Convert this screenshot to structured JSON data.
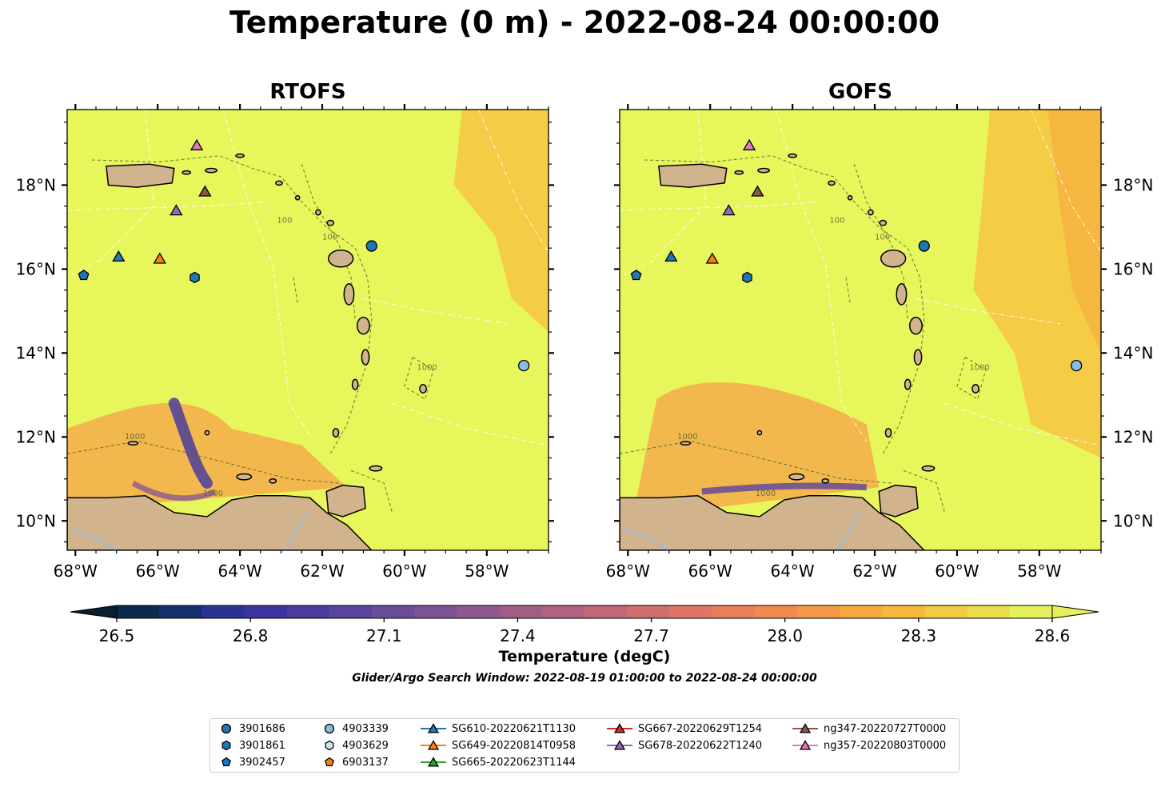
{
  "title": "Temperature (0 m) - 2022-08-24 00:00:00",
  "subtitle": "Glider/Argo Search Window: 2022-08-19 01:00:00 to 2022-08-24 00:00:00",
  "map": {
    "lon_range": [
      -68.2,
      -56.5
    ],
    "lat_range": [
      9.3,
      19.8
    ],
    "lon_ticks": [
      -68,
      -66,
      -64,
      -62,
      -60,
      -58
    ],
    "lat_ticks": [
      10,
      12,
      14,
      16,
      18
    ],
    "lon_tick_labels": [
      "68°W",
      "66°W",
      "64°W",
      "62°W",
      "60°W",
      "58°W"
    ],
    "lat_tick_labels": [
      "10°N",
      "12°N",
      "14°N",
      "16°N",
      "18°N"
    ],
    "isobath_label": "1000",
    "isobath_label_alt": "100"
  },
  "panels": [
    {
      "name": "RTOFS"
    },
    {
      "name": "GOFS"
    }
  ],
  "colorbar": {
    "label": "Temperature (degC)",
    "vmin": 26.5,
    "vmax": 28.6,
    "ticks": [
      "26.5",
      "26.8",
      "27.1",
      "27.4",
      "27.7",
      "28.0",
      "28.3",
      "28.6"
    ],
    "colors": [
      "#06202f",
      "#0b2a4f",
      "#16306e",
      "#2a3393",
      "#3c35a0",
      "#4b3c9e",
      "#5b449b",
      "#6b4c98",
      "#7c5393",
      "#8e598e",
      "#a05e87",
      "#b06380",
      "#c06778",
      "#d06d6e",
      "#de7565",
      "#ea7e5b",
      "#f28a50",
      "#f59846",
      "#f7a83e",
      "#f6b93c",
      "#f2cc40",
      "#ebdd49",
      "#e6f05a"
    ]
  },
  "colors": {
    "land": "#d1b38d",
    "ocean_warm": "#e7f75b",
    "ocean_orange": "#f7c443",
    "river": "#9cbdd9"
  },
  "markers": [
    {
      "id": "3901686",
      "shape": "circle",
      "color": "#1f77b4",
      "lon": -60.8,
      "lat": 16.55
    },
    {
      "id": "3901861",
      "shape": "hexagon",
      "color": "#1f77b4",
      "lon": -65.1,
      "lat": 15.8
    },
    {
      "id": "3902457",
      "shape": "pentagon",
      "color": "#1f77b4",
      "lon": -67.8,
      "lat": 15.85
    },
    {
      "id": "4903339",
      "shape": "circle",
      "color": "#86bde0",
      "lon": -57.1,
      "lat": 13.7
    },
    {
      "id": "4903629",
      "shape": "hexagon",
      "color": "#c9e6f7",
      "lon": null,
      "lat": null
    },
    {
      "id": "6903137",
      "shape": "pentagon",
      "color": "#ff7f0e",
      "lon": null,
      "lat": null
    },
    {
      "id": "SG610-20220621T1130",
      "shape": "triangle",
      "color": "#1f77b4",
      "lon": -66.95,
      "lat": 16.3
    },
    {
      "id": "SG649-20220814T0958",
      "shape": "triangle",
      "color": "#ff7f0e",
      "lon": -65.95,
      "lat": 16.25
    },
    {
      "id": "SG665-20220623T1144",
      "shape": "triangle",
      "color": "#2ca02c",
      "lon": null,
      "lat": null
    },
    {
      "id": "SG667-20220629T1254",
      "shape": "triangle",
      "color": "#d62728",
      "lon": null,
      "lat": null
    },
    {
      "id": "SG678-20220622T1240",
      "shape": "triangle",
      "color": "#9467bd",
      "lon": -65.55,
      "lat": 17.4
    },
    {
      "id": "ng347-20220727T0000",
      "shape": "triangle",
      "color": "#8c564b",
      "lon": -64.85,
      "lat": 17.85
    },
    {
      "id": "ng357-20220803T0000",
      "shape": "triangle",
      "color": "#e377c2",
      "lon": -65.05,
      "lat": 18.95
    }
  ]
}
